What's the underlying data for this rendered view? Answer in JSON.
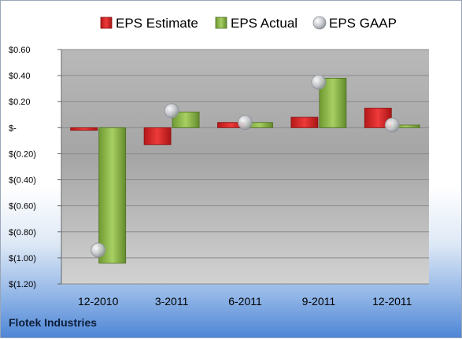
{
  "chart_data": {
    "type": "bar",
    "categories": [
      "12-2010",
      "3-2011",
      "6-2011",
      "9-2011",
      "12-2011"
    ],
    "series": [
      {
        "name": "EPS Estimate",
        "kind": "bar",
        "values": [
          -0.02,
          -0.13,
          0.04,
          0.08,
          0.15
        ]
      },
      {
        "name": "EPS Actual",
        "kind": "bar",
        "values": [
          -1.04,
          0.12,
          0.04,
          0.38,
          0.02
        ]
      },
      {
        "name": "EPS GAAP",
        "kind": "marker",
        "values": [
          -0.94,
          0.13,
          0.04,
          0.35,
          0.02
        ]
      }
    ],
    "ylim": [
      -1.2,
      0.6
    ],
    "yticks": [
      {
        "value": 0.6,
        "label": "$0.60"
      },
      {
        "value": 0.4,
        "label": "$0.40"
      },
      {
        "value": 0.2,
        "label": "$0.20"
      },
      {
        "value": 0,
        "label": "$-"
      },
      {
        "value": -0.2,
        "label": "$(0.20)"
      },
      {
        "value": -0.4,
        "label": "$(0.40)"
      },
      {
        "value": -0.6,
        "label": "$(0.60)"
      },
      {
        "value": -0.8,
        "label": "$(0.80)"
      },
      {
        "value": -1.0,
        "label": "$(1.00)"
      },
      {
        "value": -1.2,
        "label": "$(1.20)"
      }
    ],
    "legend_position": "top",
    "grid": true,
    "colors": {
      "estimate": "#d42a2a",
      "actual": "#8cb84a",
      "gaap": "#c4c7cc",
      "plot_background": "#a3a3a3",
      "gridline": "#8a8a8a"
    }
  },
  "footer": {
    "company": "Flotek Industries"
  }
}
